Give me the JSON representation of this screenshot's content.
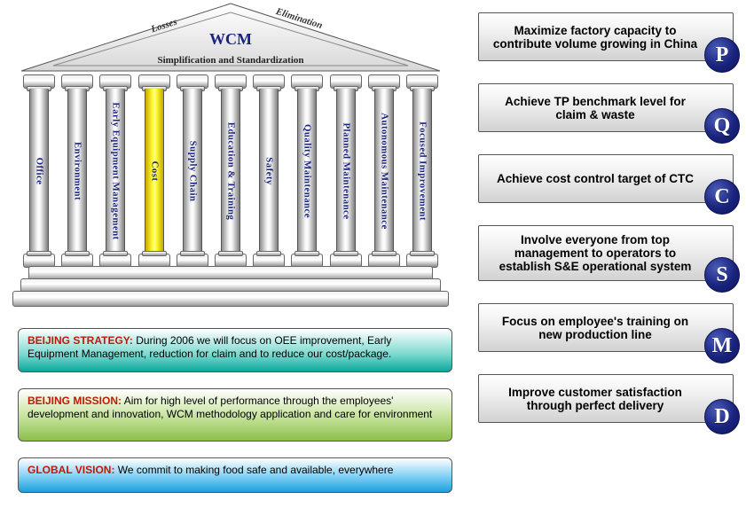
{
  "temple": {
    "roof": {
      "main": "WCM",
      "left": "Losses",
      "right": "Elimination",
      "sub": "Simplification and Standardization",
      "stroke": "#555555",
      "fill_top": "#ffffff",
      "fill_bottom": "#d8d8d8",
      "text_color": "#1a237e"
    },
    "pillars": [
      {
        "label": "Office",
        "highlight": false
      },
      {
        "label": "Environment",
        "highlight": false
      },
      {
        "label": "Early Equipment Management",
        "highlight": false
      },
      {
        "label": "Cost",
        "highlight": true
      },
      {
        "label": "Supply Chain",
        "highlight": false
      },
      {
        "label": "Education & Training",
        "highlight": false
      },
      {
        "label": "Safety",
        "highlight": false
      },
      {
        "label": "Quality Maintenance",
        "highlight": false
      },
      {
        "label": "Planned Maintenance",
        "highlight": false
      },
      {
        "label": "Autonomous Maintenance",
        "highlight": false
      },
      {
        "label": "Focused Improvement",
        "highlight": false
      }
    ],
    "pillar_style": {
      "color": "#1a237e",
      "fontsize": 14,
      "highlight_fill": "#ffff33",
      "normal_fill_light": "#ffffff",
      "normal_fill_dark": "#7e7e7e"
    }
  },
  "bars": {
    "strategy": {
      "label": "BEIJING STRATEGY:",
      "text": " During 2006 we will focus on OEE improvement, Early Equipment Management, reduction for claim and to reduce our cost/package.",
      "label_color": "#c21807",
      "bg_from": "#ffffff",
      "bg_to": "#0aa79b"
    },
    "mission": {
      "label": "BEIJING MISSION:",
      "text": " Aim for high level of performance through the employees' development and innovation, WCM methodology application and care for environment",
      "label_color": "#c21807",
      "bg_from": "#ffffff",
      "bg_to": "#8cbf4a"
    },
    "vision": {
      "label": "GLOBAL VISION:",
      "text": " We commit to making food safe and available, everywhere",
      "label_color": "#c21807",
      "bg_from": "#ffffff",
      "bg_to": "#1ba0dc"
    }
  },
  "cards": [
    {
      "letter": "P",
      "text": "Maximize factory capacity to contribute volume growing in China"
    },
    {
      "letter": "Q",
      "text": "Achieve TP benchmark level for claim & waste"
    },
    {
      "letter": "C",
      "text": "Achieve cost control target of CTC"
    },
    {
      "letter": "S",
      "text": "Involve everyone from top management to operators to establish S&E operational system"
    },
    {
      "letter": "M",
      "text": "Focus on employee's training on new production line"
    },
    {
      "letter": "D",
      "text": "Improve customer satisfaction through perfect delivery"
    }
  ],
  "card_style": {
    "badge_bg": "#1a237e",
    "badge_fg": "#ffffff",
    "card_bg_from": "#ffffff",
    "card_bg_to": "#d2d2d2",
    "fontsize": 13.5
  }
}
